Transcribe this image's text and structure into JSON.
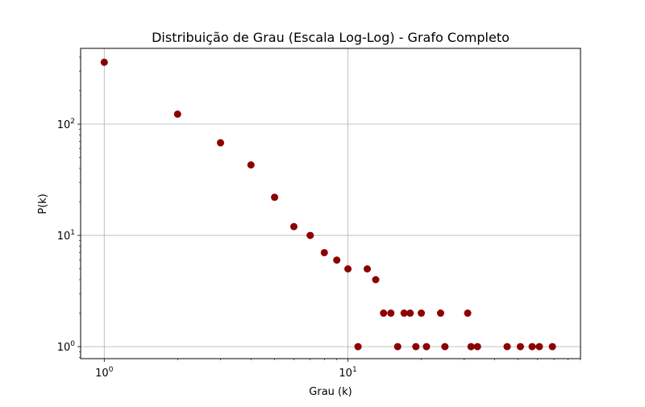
{
  "chart_data": {
    "type": "scatter",
    "title": "Distribuição de Grau (Escala Log-Log) - Grafo Completo",
    "xlabel": "Grau (k)",
    "ylabel": "P(k)",
    "xscale": "log",
    "yscale": "log",
    "xlim": [
      0.8,
      90
    ],
    "ylim": [
      0.78,
      480
    ],
    "grid": true,
    "marker_color": "#8b0000",
    "x_ticks": [
      {
        "base": "10",
        "exp": "0",
        "value": 1
      },
      {
        "base": "10",
        "exp": "1",
        "value": 10
      }
    ],
    "y_ticks": [
      {
        "base": "10",
        "exp": "0",
        "value": 1
      },
      {
        "base": "10",
        "exp": "1",
        "value": 10
      },
      {
        "base": "10",
        "exp": "2",
        "value": 100
      }
    ],
    "points": [
      {
        "x": 1,
        "y": 360
      },
      {
        "x": 2,
        "y": 123
      },
      {
        "x": 3,
        "y": 68
      },
      {
        "x": 4,
        "y": 43
      },
      {
        "x": 5,
        "y": 22
      },
      {
        "x": 6,
        "y": 12
      },
      {
        "x": 7,
        "y": 10
      },
      {
        "x": 8,
        "y": 7
      },
      {
        "x": 9,
        "y": 6
      },
      {
        "x": 10,
        "y": 5
      },
      {
        "x": 11,
        "y": 1
      },
      {
        "x": 12,
        "y": 5
      },
      {
        "x": 13,
        "y": 4
      },
      {
        "x": 14,
        "y": 2
      },
      {
        "x": 15,
        "y": 2
      },
      {
        "x": 16,
        "y": 1
      },
      {
        "x": 17,
        "y": 2
      },
      {
        "x": 18,
        "y": 2
      },
      {
        "x": 19,
        "y": 1
      },
      {
        "x": 20,
        "y": 2
      },
      {
        "x": 21,
        "y": 1
      },
      {
        "x": 24,
        "y": 2
      },
      {
        "x": 25,
        "y": 1
      },
      {
        "x": 31,
        "y": 2
      },
      {
        "x": 32,
        "y": 1
      },
      {
        "x": 34,
        "y": 1
      },
      {
        "x": 45,
        "y": 1
      },
      {
        "x": 51,
        "y": 1
      },
      {
        "x": 57,
        "y": 1
      },
      {
        "x": 61,
        "y": 1
      },
      {
        "x": 69,
        "y": 1
      }
    ]
  }
}
